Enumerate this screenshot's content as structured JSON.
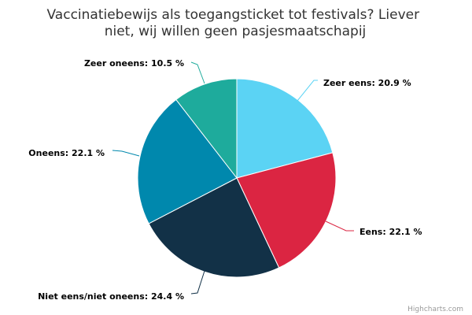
{
  "chart_data": {
    "type": "pie",
    "title_lines": [
      "Vaccinatiebewijs als toegangsticket tot festivals? Liever",
      "niet, wij willen geen pasjesmaatschapij"
    ],
    "slices": [
      {
        "name": "Zeer eens",
        "value": 20.9,
        "label": "Zeer eens: 20.9 %",
        "color": "#5bd3f4"
      },
      {
        "name": "Eens",
        "value": 22.1,
        "label": "Eens: 22.1 %",
        "color": "#db2542"
      },
      {
        "name": "Niet eens/niet oneens",
        "value": 24.4,
        "label": "Niet eens/niet oneens: 24.4 %",
        "color": "#123147"
      },
      {
        "name": "Oneens",
        "value": 22.1,
        "label": "Oneens: 22.1 %",
        "color": "#0088ad"
      },
      {
        "name": "Zeer oneens",
        "value": 10.5,
        "label": "Zeer oneens: 10.5 %",
        "color": "#1eab9c"
      }
    ],
    "unit": "%"
  },
  "credits": "Highcharts.com"
}
